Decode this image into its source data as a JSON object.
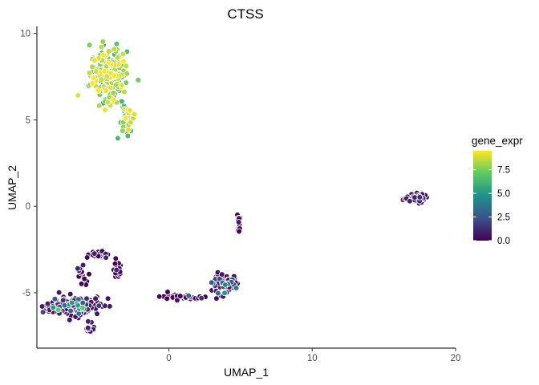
{
  "chart_data": {
    "type": "scatter",
    "title": "CTSS",
    "xlabel": "UMAP_1",
    "ylabel": "UMAP_2",
    "xlim": [
      -9.2,
      20
    ],
    "ylim": [
      -8.2,
      10.4
    ],
    "xticks": [
      0,
      10,
      20
    ],
    "yticks": [
      -5,
      0,
      5,
      10
    ],
    "grid": false,
    "legend": {
      "title": "gene_expr",
      "placement": "right",
      "type": "colorbar",
      "range": [
        0,
        9.5
      ],
      "ticks": [
        "0.0",
        "2.5",
        "5.0",
        "7.5"
      ],
      "tick_values": [
        0,
        2.5,
        5,
        7.5
      ]
    },
    "colormap": [
      "#440154",
      "#3b528b",
      "#21908c",
      "#5dc963",
      "#fde725"
    ],
    "clusters": [
      {
        "center": [
          -4.2,
          7.6
        ],
        "spread": [
          0.9,
          1.1
        ],
        "n": 260,
        "expr_mean": 7.8,
        "expr_sd": 0.9
      },
      {
        "center": [
          -3.0,
          5.0
        ],
        "spread": [
          0.35,
          0.6
        ],
        "n": 45,
        "expr_mean": 7.5,
        "expr_sd": 1.1
      },
      {
        "center": [
          17.2,
          0.45
        ],
        "spread": [
          0.6,
          0.18
        ],
        "n": 60,
        "expr_mean": 0.5,
        "expr_sd": 1.2
      },
      {
        "center": [
          4.9,
          -0.9
        ],
        "spread": [
          0.12,
          0.5
        ],
        "n": 18,
        "expr_mean": 0.1,
        "expr_sd": 0.2
      },
      {
        "center": [
          3.8,
          -4.5
        ],
        "spread": [
          0.6,
          0.35
        ],
        "n": 110,
        "expr_mean": 0.4,
        "expr_sd": 0.9
      },
      {
        "center": [
          1.0,
          -5.25
        ],
        "spread": [
          1.0,
          0.12
        ],
        "n": 45,
        "expr_mean": 0.1,
        "expr_sd": 0.3
      },
      {
        "center": [
          -6.5,
          -5.8
        ],
        "spread": [
          1.3,
          0.35
        ],
        "n": 200,
        "expr_mean": 0.4,
        "expr_sd": 1.0
      },
      {
        "center": [
          -4.8,
          -2.8
        ],
        "spread": [
          0.5,
          0.15
        ],
        "n": 30,
        "expr_mean": 0.1,
        "expr_sd": 0.3
      },
      {
        "center": [
          -3.6,
          -3.8
        ],
        "spread": [
          0.25,
          0.4
        ],
        "n": 25,
        "expr_mean": 0.1,
        "expr_sd": 0.3
      },
      {
        "center": [
          -6.0,
          -3.9
        ],
        "spread": [
          0.3,
          0.35
        ],
        "n": 15,
        "expr_mean": 0.1,
        "expr_sd": 0.3
      },
      {
        "center": [
          -5.5,
          -7.1
        ],
        "spread": [
          0.2,
          0.3
        ],
        "n": 15,
        "expr_mean": 0.5,
        "expr_sd": 1.2
      }
    ]
  }
}
